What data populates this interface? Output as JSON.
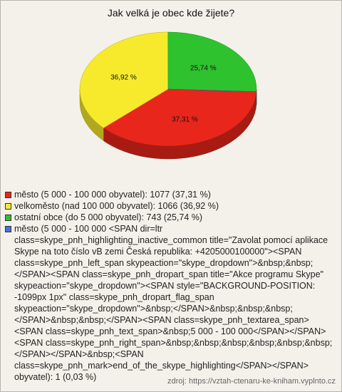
{
  "chart_data": {
    "type": "pie3d",
    "title": "Jak velká je obec kde žijete?",
    "categories": [
      "město (5 000 - 100 000 obyvatel): 1077 (37,31 %)",
      "velkoměsto (nad 100 000 obyvatel): 1066 (36,92 %)",
      "ostatní obce (do 5 000 obyvatel): 743 (25,74 %)",
      "město (5 000 - 100 000 <SPAN dir=ltr class=skype_pnh_highlighting_inactive_common title=\"Zavolat pomocí aplikace Skype na toto číslo vB zemi Česká republika: +4205000100000\"><SPAN class=skype_pnh_left_span skypeaction=\"skype_dropdown\">&nbsp;&nbsp;</SPAN><SPAN class=skype_pnh_dropart_span title=\"Akce programu Skype\" skypeaction=\"skype_dropdown\"><SPAN style=\"BACKGROUND-POSITION: -1099px 1px\" class=skype_pnh_dropart_flag_span skypeaction=\"skype_dropdown\">&nbsp;</SPAN>&nbsp;&nbsp;&nbsp;</SPAN>&nbsp;&nbsp;</SPAN><SPAN class=skype_pnh_textarea_span><SPAN class=skype_pnh_text_span>&nbsp;5 000 - 100 000</SPAN></SPAN><SPAN class=skype_pnh_right_span>&nbsp;&nbsp;&nbsp;&nbsp;&nbsp;&nbsp;</SPAN></SPAN>&nbsp;<SPAN class=skype_pnh_mark>end_of_the_skype_highlighting</SPAN></SPAN> obyvatel): 1 (0,03 %)"
    ],
    "values": [
      37.31,
      36.92,
      25.74,
      0.03
    ],
    "value_labels": [
      "37,31 %",
      "36,92 %",
      "25,74 %",
      "0,03 %"
    ],
    "colors": [
      "#e8261b",
      "#f7ea2c",
      "#2ec22e",
      "#4a6fd8"
    ],
    "source": "zdroj: https://vztah-ctenaru-ke-kniham.vyplnto.cz"
  }
}
